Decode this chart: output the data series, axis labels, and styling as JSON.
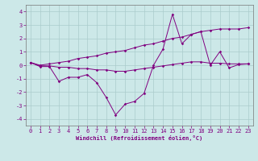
{
  "x": [
    0,
    1,
    2,
    3,
    4,
    5,
    6,
    7,
    8,
    9,
    10,
    11,
    12,
    13,
    14,
    15,
    16,
    17,
    18,
    19,
    20,
    21,
    22,
    23
  ],
  "line1": [
    0.2,
    -0.1,
    -0.1,
    -1.2,
    -0.9,
    -0.9,
    -0.7,
    -1.3,
    -2.4,
    -3.7,
    -2.9,
    -2.7,
    -2.1,
    0.0,
    1.2,
    3.8,
    1.6,
    2.3,
    2.5,
    0.0,
    1.0,
    -0.2,
    0.05,
    0.1
  ],
  "line2": [
    0.2,
    -0.05,
    -0.05,
    -0.15,
    -0.15,
    -0.25,
    -0.25,
    -0.35,
    -0.35,
    -0.45,
    -0.45,
    -0.35,
    -0.25,
    -0.15,
    -0.05,
    0.05,
    0.15,
    0.25,
    0.25,
    0.15,
    0.15,
    0.1,
    0.1,
    0.1
  ],
  "line3": [
    0.2,
    0.0,
    0.1,
    0.2,
    0.3,
    0.5,
    0.6,
    0.7,
    0.9,
    1.0,
    1.1,
    1.3,
    1.5,
    1.6,
    1.8,
    2.0,
    2.1,
    2.3,
    2.5,
    2.6,
    2.7,
    2.7,
    2.7,
    2.8
  ],
  "color": "#800080",
  "bg_color": "#cce8e8",
  "grid_color": "#aacccc",
  "xlabel": "Windchill (Refroidissement éolien,°C)",
  "ylim": [
    -4.5,
    4.5
  ],
  "xlim": [
    -0.5,
    23.5
  ],
  "yticks": [
    -4,
    -3,
    -2,
    -1,
    0,
    1,
    2,
    3,
    4
  ],
  "xticks": [
    0,
    1,
    2,
    3,
    4,
    5,
    6,
    7,
    8,
    9,
    10,
    11,
    12,
    13,
    14,
    15,
    16,
    17,
    18,
    19,
    20,
    21,
    22,
    23
  ],
  "xlabel_fontsize": 5.0,
  "tick_fontsize": 5.0,
  "linewidth": 0.7,
  "markersize": 1.8
}
